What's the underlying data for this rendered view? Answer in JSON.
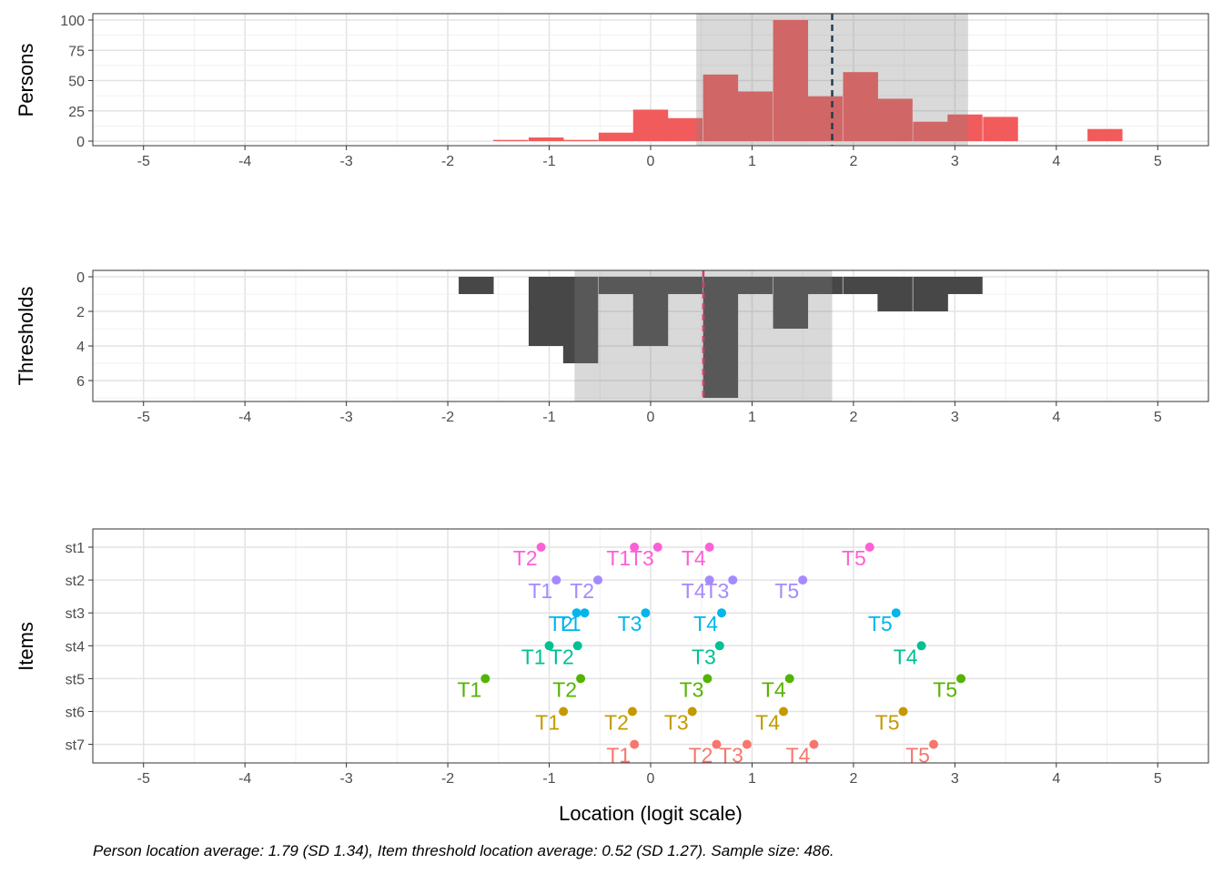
{
  "caption": "Person location average: 1.79 (SD 1.34), Item threshold location average: 0.52 (SD 1.27). Sample size: 486.",
  "xlabel": "Location (logit scale)",
  "x_ticks": [
    "-5",
    "-4",
    "-3",
    "-2",
    "-1",
    "0",
    "1",
    "2",
    "3",
    "4",
    "5"
  ],
  "colors": {
    "persons_bar": "#f25b5b",
    "thresholds_bar": "#474747",
    "band": "#d9d9d9",
    "person_mean_line": "#1f3f52",
    "threshold_mean_line": "#d63d6b",
    "T1": "#F8766D",
    "T2": "#C49A00",
    "T3": "#53B400",
    "T4": "#00C094",
    "T5": "#00B6EB",
    "T6": "#A58AFF",
    "T7": "#FB61D7"
  },
  "chart_data": [
    {
      "type": "bar",
      "ylabel": "Persons",
      "y_ticks": [
        "0",
        "25",
        "50",
        "75",
        "100"
      ],
      "ylim": [
        0,
        100
      ],
      "xlim": [
        -5.5,
        5.5
      ],
      "bin_width": 0.345,
      "bars": [
        {
          "x": -1.38,
          "y": 1
        },
        {
          "x": -1.03,
          "y": 3
        },
        {
          "x": -0.69,
          "y": 1
        },
        {
          "x": -0.34,
          "y": 7
        },
        {
          "x": 0.0,
          "y": 26
        },
        {
          "x": 0.34,
          "y": 19
        },
        {
          "x": 0.69,
          "y": 55
        },
        {
          "x": 1.03,
          "y": 41
        },
        {
          "x": 1.38,
          "y": 100
        },
        {
          "x": 1.72,
          "y": 37
        },
        {
          "x": 2.07,
          "y": 57
        },
        {
          "x": 2.41,
          "y": 35
        },
        {
          "x": 2.76,
          "y": 16
        },
        {
          "x": 3.1,
          "y": 22
        },
        {
          "x": 3.45,
          "y": 20
        },
        {
          "x": 4.48,
          "y": 10
        }
      ],
      "mean": 1.79,
      "band": [
        0.45,
        3.13
      ]
    },
    {
      "type": "bar",
      "ylabel": "Thresholds",
      "y_ticks": [
        "0",
        "2",
        "4",
        "6"
      ],
      "ylim": [
        0,
        7
      ],
      "y_reversed": true,
      "xlim": [
        -5.5,
        5.5
      ],
      "bin_width": 0.345,
      "bars": [
        {
          "x": -1.72,
          "y": 1
        },
        {
          "x": -1.03,
          "y": 4
        },
        {
          "x": -0.69,
          "y": 5
        },
        {
          "x": -0.34,
          "y": 1
        },
        {
          "x": 0.0,
          "y": 4
        },
        {
          "x": 0.34,
          "y": 1
        },
        {
          "x": 0.69,
          "y": 7
        },
        {
          "x": 1.03,
          "y": 1
        },
        {
          "x": 1.38,
          "y": 3
        },
        {
          "x": 1.72,
          "y": 1
        },
        {
          "x": 2.07,
          "y": 1
        },
        {
          "x": 2.41,
          "y": 2
        },
        {
          "x": 2.76,
          "y": 2
        },
        {
          "x": 3.1,
          "y": 1
        }
      ],
      "mean": 0.52,
      "band": [
        -0.75,
        1.79
      ]
    },
    {
      "type": "scatter",
      "ylabel": "Items",
      "xlim": [
        -5.5,
        5.5
      ],
      "items": [
        "st1",
        "st2",
        "st3",
        "st4",
        "st5",
        "st6",
        "st7"
      ],
      "points": [
        {
          "item": "st1",
          "label": "T2",
          "x": -1.08
        },
        {
          "item": "st1",
          "label": "T1",
          "x": -0.16
        },
        {
          "item": "st1",
          "label": "T3",
          "x": 0.07
        },
        {
          "item": "st1",
          "label": "T4",
          "x": 0.58
        },
        {
          "item": "st1",
          "label": "T5",
          "x": 2.16
        },
        {
          "item": "st2",
          "label": "T1",
          "x": -0.93
        },
        {
          "item": "st2",
          "label": "T2",
          "x": -0.52
        },
        {
          "item": "st2",
          "label": "T4",
          "x": 0.58
        },
        {
          "item": "st2",
          "label": "T3",
          "x": 0.81
        },
        {
          "item": "st2",
          "label": "T5",
          "x": 1.5
        },
        {
          "item": "st3",
          "label": "T2",
          "x": -0.73
        },
        {
          "item": "st3",
          "label": "T1",
          "x": -0.65
        },
        {
          "item": "st3",
          "label": "T3",
          "x": -0.05
        },
        {
          "item": "st3",
          "label": "T4",
          "x": 0.7
        },
        {
          "item": "st3",
          "label": "T5",
          "x": 2.42
        },
        {
          "item": "st4",
          "label": "T1",
          "x": -1.0
        },
        {
          "item": "st4",
          "label": "T2",
          "x": -0.72
        },
        {
          "item": "st4",
          "label": "T3",
          "x": 0.68
        },
        {
          "item": "st4",
          "label": "T4",
          "x": 2.67
        },
        {
          "item": "st5",
          "label": "T1",
          "x": -1.63
        },
        {
          "item": "st5",
          "label": "T2",
          "x": -0.69
        },
        {
          "item": "st5",
          "label": "T3",
          "x": 0.56
        },
        {
          "item": "st5",
          "label": "T4",
          "x": 1.37
        },
        {
          "item": "st5",
          "label": "T5",
          "x": 3.06
        },
        {
          "item": "st6",
          "label": "T1",
          "x": -0.86
        },
        {
          "item": "st6",
          "label": "T2",
          "x": -0.18
        },
        {
          "item": "st6",
          "label": "T3",
          "x": 0.41
        },
        {
          "item": "st6",
          "label": "T4",
          "x": 1.31
        },
        {
          "item": "st6",
          "label": "T5",
          "x": 2.49
        },
        {
          "item": "st7",
          "label": "T1",
          "x": -0.16
        },
        {
          "item": "st7",
          "label": "T2",
          "x": 0.65
        },
        {
          "item": "st7",
          "label": "T3",
          "x": 0.95
        },
        {
          "item": "st7",
          "label": "T4",
          "x": 1.61
        },
        {
          "item": "st7",
          "label": "T5",
          "x": 2.79
        }
      ]
    }
  ]
}
